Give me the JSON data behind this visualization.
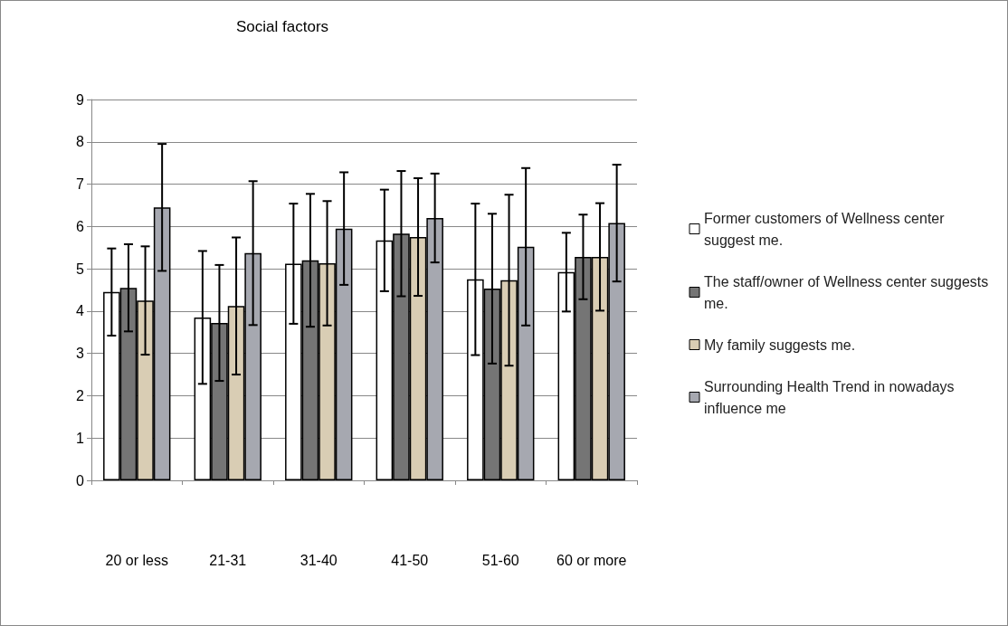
{
  "chart_data": {
    "type": "bar",
    "title": "Social factors",
    "categories": [
      "20 or less",
      "21-31",
      "31-40",
      "41-50",
      "51-60",
      "60 or more"
    ],
    "series": [
      {
        "name": "Former customers of Wellness center suggest me.",
        "color": "#ffffff",
        "values": [
          4.45,
          3.85,
          5.12,
          5.67,
          4.75,
          4.92
        ],
        "errors": [
          1.03,
          1.57,
          1.42,
          1.2,
          1.79,
          0.93
        ]
      },
      {
        "name": "The staff/owner of Wellness center suggests me.",
        "color": "#757575",
        "values": [
          4.55,
          3.72,
          5.2,
          5.83,
          4.53,
          5.28
        ],
        "errors": [
          1.03,
          1.37,
          1.57,
          1.48,
          1.77,
          1.0
        ]
      },
      {
        "name": "My family suggests me.",
        "color": "#d9cdb4",
        "values": [
          4.25,
          4.12,
          5.13,
          5.75,
          4.73,
          5.28
        ],
        "errors": [
          1.28,
          1.62,
          1.47,
          1.39,
          2.02,
          1.27
        ]
      },
      {
        "name": "Surrounding Health Trend in nowadays influence me",
        "color": "#a6a8b0",
        "values": [
          6.45,
          5.37,
          5.95,
          6.2,
          5.52,
          6.08
        ],
        "errors": [
          1.5,
          1.7,
          1.33,
          1.05,
          1.86,
          1.38
        ]
      }
    ],
    "ylim": [
      0,
      9
    ],
    "yticks": [
      0,
      1,
      2,
      3,
      4,
      5,
      6,
      7,
      8,
      9
    ],
    "grid": "y",
    "legend": "right"
  }
}
